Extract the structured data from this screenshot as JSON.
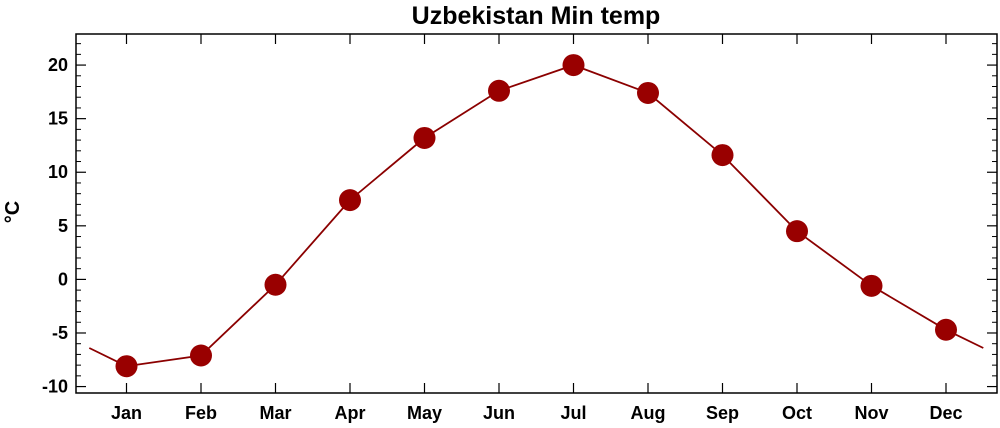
{
  "chart_data": {
    "type": "line",
    "title": "Uzbekistan Min temp",
    "ylabel": "°C",
    "xlabel": "",
    "categories": [
      "Jan",
      "Feb",
      "Mar",
      "Apr",
      "May",
      "Jun",
      "Jul",
      "Aug",
      "Sep",
      "Oct",
      "Nov",
      "Dec"
    ],
    "series": [
      {
        "values": [
          -8.1,
          -7.1,
          -0.5,
          7.4,
          13.2,
          17.6,
          20.0,
          17.4,
          11.6,
          4.5,
          -0.6,
          -4.7
        ]
      }
    ],
    "ylim": [
      -10.6,
      22.9
    ],
    "yticks": [
      20,
      15,
      10,
      5,
      0,
      -5,
      -10
    ],
    "ytick_labels": [
      "20",
      "15",
      "10",
      "5",
      "0",
      "-5",
      "-10"
    ],
    "grid": false,
    "colors": {
      "line": "#8b0000",
      "marker": "#990000",
      "frame": "#000000"
    }
  }
}
